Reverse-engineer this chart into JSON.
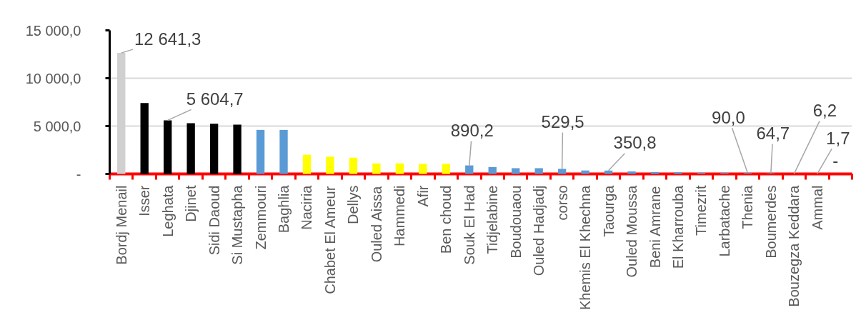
{
  "chart_data": {
    "type": "bar",
    "categories": [
      "Bordj Menail",
      "Isser",
      "Leghata",
      "Djinet",
      "Sidi Daoud",
      "Si Mustapha",
      "Zemmouri",
      "Baghlia",
      "Naciria",
      "Chabet El Ameur",
      "Dellys",
      "Ouled Aissa",
      "Hammedi",
      "Afir",
      "Ben choud",
      "Souk El Had",
      "Tidjelabine",
      "Boudouaou",
      "Ouled Hadjadj",
      "corso",
      "Khemis El Khechna",
      "Taourga",
      "Ouled Moussa",
      "Beni Amrane",
      "El Kharrouba",
      "Timezrit",
      "Larbatache",
      "Thenia",
      "Boumerdes",
      "Bouzegza Keddara",
      "Ammal",
      null
    ],
    "values": [
      12641.3,
      7400,
      5604.7,
      5300,
      5250,
      5150,
      4600,
      4600,
      2000,
      1800,
      1700,
      1100,
      1100,
      1050,
      1050,
      890.2,
      720,
      600,
      600,
      529.5,
      360,
      350.8,
      260,
      200,
      170,
      120,
      100,
      90.0,
      64.7,
      6.2,
      1.7,
      0
    ],
    "colors": [
      "#d0d0d0",
      "#000000",
      "#000000",
      "#000000",
      "#000000",
      "#000000",
      "#5b9bd5",
      "#5b9bd5",
      "#ffff00",
      "#ffff00",
      "#ffff00",
      "#ffff00",
      "#ffff00",
      "#ffff00",
      "#ffff00",
      "#5b9bd5",
      "#5b9bd5",
      "#5b9bd5",
      "#5b9bd5",
      "#5b9bd5",
      "#5b9bd5",
      "#5b9bd5",
      "#5b9bd5",
      "#5b9bd5",
      "#5b9bd5",
      "#5b9bd5",
      "#5b9bd5",
      "#5b9bd5",
      "#5b9bd5",
      "#5b9bd5",
      "#5b9bd5",
      "#5b9bd5"
    ],
    "value_labels": [
      "12 641,3",
      null,
      "5 604,7",
      null,
      null,
      null,
      null,
      null,
      null,
      null,
      null,
      null,
      null,
      null,
      null,
      "890,2",
      null,
      null,
      null,
      "529,5",
      null,
      "350,8",
      null,
      null,
      null,
      null,
      null,
      "90,0",
      "64,7",
      "6,2",
      "1,7",
      "-"
    ],
    "ylim": [
      0,
      15000
    ],
    "yticks": [
      {
        "value": 0,
        "label": "-"
      },
      {
        "value": 5000,
        "label": "5 000,0"
      },
      {
        "value": 10000,
        "label": "10 000,0"
      },
      {
        "value": 15000,
        "label": "15 000,0"
      }
    ],
    "grid": "y"
  }
}
